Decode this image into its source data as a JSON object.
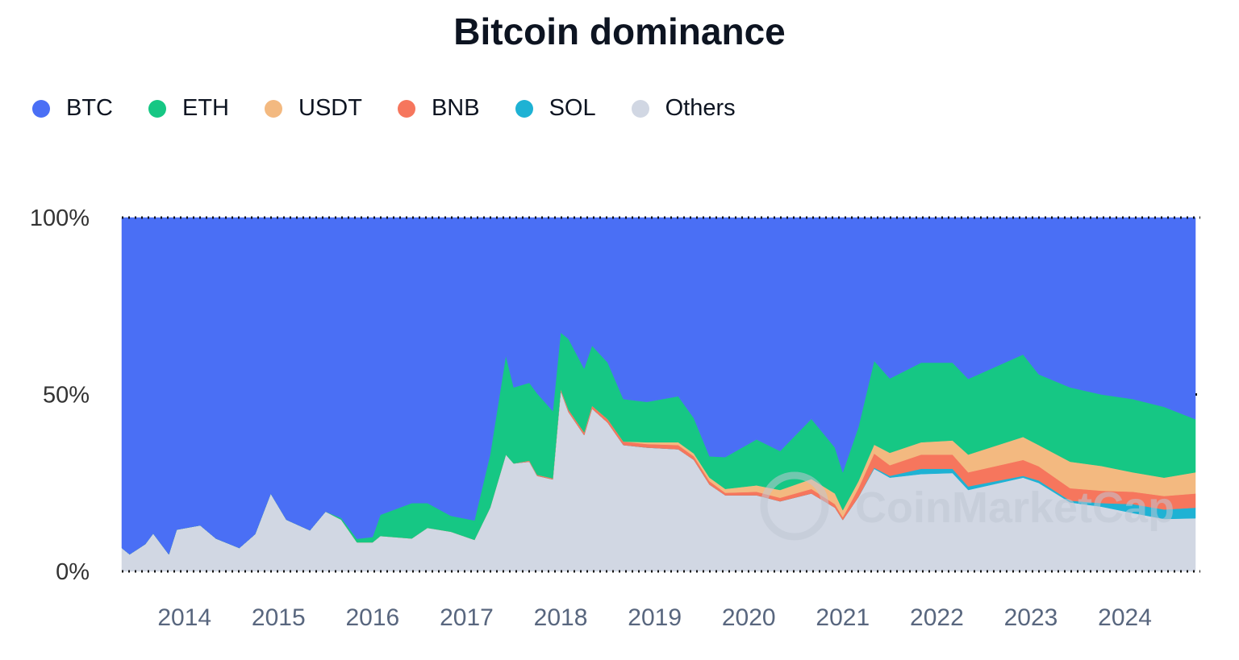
{
  "chart_data": {
    "type": "area",
    "stacked": true,
    "normalized_percent": true,
    "title": "Bitcoin dominance",
    "xlabel": "",
    "ylabel": "",
    "ylim": [
      0,
      100
    ],
    "y_ticks": [
      "0%",
      "50%",
      "100%"
    ],
    "y_tick_values": [
      0,
      50,
      100
    ],
    "x_ticks": [
      "2014",
      "2015",
      "2016",
      "2017",
      "2018",
      "2019",
      "2020",
      "2021",
      "2022",
      "2023",
      "2024"
    ],
    "xlim": [
      "2013-05",
      "2024-10"
    ],
    "grid": false,
    "legend_position": "top-left",
    "watermark": "CoinMarketCap",
    "dates": [
      "2013-05",
      "2013-06",
      "2013-08",
      "2013-09",
      "2013-11",
      "2013-12",
      "2014-03",
      "2014-05",
      "2014-08",
      "2014-10",
      "2014-12",
      "2015-02",
      "2015-05",
      "2015-07",
      "2015-09",
      "2015-11",
      "2016-01",
      "2016-02",
      "2016-06",
      "2016-08",
      "2016-11",
      "2017-02",
      "2017-04",
      "2017-06",
      "2017-07",
      "2017-09",
      "2017-10",
      "2017-12",
      "2018-01",
      "2018-02",
      "2018-04",
      "2018-05",
      "2018-07",
      "2018-09",
      "2018-12",
      "2019-04",
      "2019-06",
      "2019-08",
      "2019-10",
      "2020-02",
      "2020-05",
      "2020-09",
      "2020-12",
      "2021-01",
      "2021-03",
      "2021-05",
      "2021-07",
      "2021-11",
      "2022-03",
      "2022-05",
      "2022-12",
      "2023-02",
      "2023-06",
      "2023-10",
      "2024-02",
      "2024-06",
      "2024-10"
    ],
    "series": [
      {
        "name": "Others",
        "color": "#d1d7e3",
        "values": [
          6.6,
          4.8,
          7.7,
          10.7,
          4.8,
          11.8,
          13,
          9.3,
          6.6,
          10.5,
          22,
          14.6,
          11.6,
          16.9,
          14.6,
          8.2,
          8.2,
          10,
          9.3,
          12.3,
          11.2,
          8.9,
          18,
          33,
          30.5,
          31,
          27,
          26,
          51,
          45,
          38.5,
          46,
          42,
          35.7,
          35,
          34.5,
          31.5,
          24.5,
          21.5,
          21.5,
          19.8,
          22,
          18,
          14.5,
          21,
          29,
          26.5,
          27.5,
          27.8,
          23,
          26.5,
          25,
          19.5,
          18.3,
          16.5,
          14.8,
          15
        ]
      },
      {
        "name": "SOL",
        "color": "#1eb2d4",
        "values": [
          0,
          0,
          0,
          0,
          0,
          0,
          0,
          0,
          0,
          0,
          0,
          0,
          0,
          0,
          0,
          0,
          0,
          0,
          0,
          0,
          0,
          0,
          0,
          0,
          0,
          0,
          0,
          0,
          0,
          0,
          0,
          0,
          0,
          0,
          0,
          0,
          0,
          0,
          0,
          0,
          0,
          0,
          0,
          0,
          0,
          0.3,
          0.5,
          1.5,
          1.2,
          1,
          0.5,
          0.7,
          0.5,
          1,
          2.5,
          2.7,
          3
        ]
      },
      {
        "name": "BNB",
        "color": "#f6765d",
        "values": [
          0,
          0,
          0,
          0,
          0,
          0,
          0,
          0,
          0,
          0,
          0,
          0,
          0,
          0,
          0,
          0,
          0,
          0,
          0,
          0,
          0,
          0,
          0,
          0,
          0,
          0.3,
          0.3,
          0.3,
          0.5,
          0.7,
          0.8,
          0.8,
          1,
          1,
          1,
          1.2,
          1,
          1,
          0.7,
          1,
          1,
          1.3,
          1,
          0.8,
          2.5,
          4,
          3,
          4,
          4,
          4,
          4.5,
          4,
          3.5,
          3.5,
          3.5,
          3.8,
          4
        ]
      },
      {
        "name": "USDT",
        "color": "#f3b980",
        "values": [
          0,
          0,
          0,
          0,
          0,
          0,
          0,
          0,
          0,
          0,
          0,
          0,
          0,
          0,
          0,
          0,
          0,
          0,
          0,
          0,
          0,
          0,
          0,
          0,
          0,
          0,
          0,
          0,
          0,
          0,
          0,
          0,
          0,
          0,
          0.5,
          0.8,
          0.8,
          1,
          1.1,
          1.8,
          2.2,
          2.8,
          3,
          2,
          2,
          2.5,
          3.5,
          3.5,
          4,
          5,
          6.5,
          6,
          7.5,
          7,
          5.5,
          5.2,
          6
        ]
      },
      {
        "name": "ETH",
        "color": "#16c784",
        "values": [
          0,
          0,
          0,
          0,
          0,
          0,
          0,
          0,
          0,
          0,
          0,
          0,
          0,
          0,
          0.5,
          1,
          1.5,
          6,
          10,
          7,
          4.5,
          5.5,
          15,
          28,
          21.5,
          22,
          23,
          19,
          16,
          20,
          18,
          17,
          16,
          12,
          11.4,
          13,
          10,
          6,
          9,
          13,
          11,
          17,
          13,
          10.7,
          15.3,
          23.7,
          21,
          22.5,
          22,
          21.4,
          23.3,
          20,
          21,
          20.2,
          20.7,
          20,
          15
        ]
      },
      {
        "name": "BTC",
        "color": "#4a6ff5",
        "values": [
          93.4,
          95.2,
          92.3,
          89.3,
          95.2,
          88.2,
          87,
          90.7,
          93.4,
          89.5,
          78,
          85.4,
          88.4,
          83.1,
          84.9,
          90.8,
          90.3,
          84,
          80.7,
          80.7,
          84.3,
          85.6,
          67,
          39,
          48,
          46.7,
          49.7,
          54.7,
          32.5,
          34.3,
          42.7,
          36.2,
          41,
          51.3,
          52.1,
          50.5,
          56.7,
          67.5,
          67.7,
          62.6,
          66,
          56.9,
          65,
          72,
          59.2,
          40.5,
          45.5,
          41,
          41,
          45.6,
          38.7,
          44.3,
          48,
          50,
          51.3,
          53.5,
          57
        ]
      }
    ]
  },
  "legend": {
    "items": [
      {
        "label": "BTC",
        "color": "#4a6ff5"
      },
      {
        "label": "ETH",
        "color": "#16c784"
      },
      {
        "label": "USDT",
        "color": "#f3b980"
      },
      {
        "label": "BNB",
        "color": "#f6765d"
      },
      {
        "label": "SOL",
        "color": "#1eb2d4"
      },
      {
        "label": "Others",
        "color": "#d1d7e3"
      }
    ]
  }
}
